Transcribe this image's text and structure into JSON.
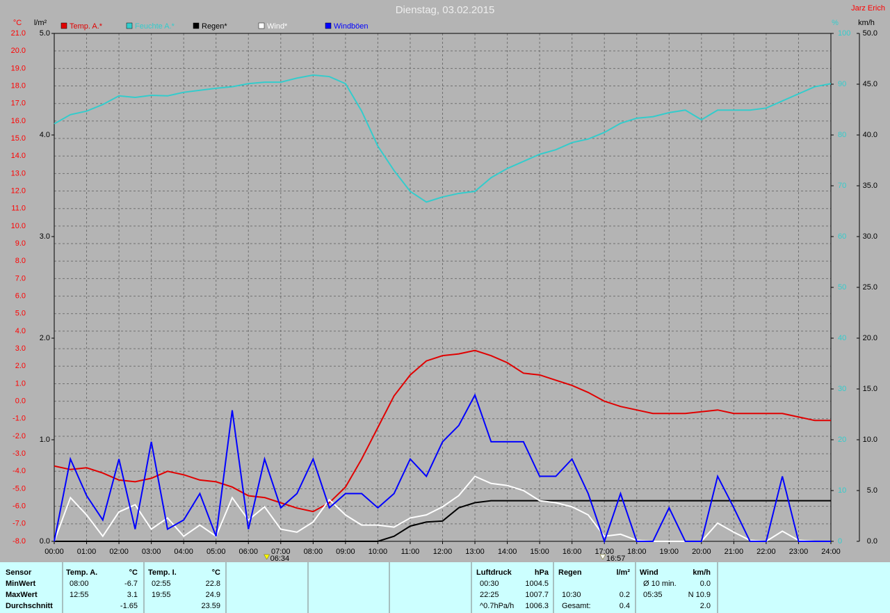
{
  "chart_data": {
    "type": "line",
    "title": "Dienstag, 03.02.2015",
    "author": "Jarz Erich",
    "grid": true,
    "legend": "top-left",
    "x": [
      0,
      0.5,
      1,
      1.5,
      2,
      2.5,
      3,
      3.5,
      4,
      4.5,
      5,
      5.5,
      6,
      6.5,
      7,
      7.5,
      8,
      8.5,
      9,
      9.5,
      10,
      10.5,
      11,
      11.5,
      12,
      12.5,
      13,
      13.5,
      14,
      14.5,
      15,
      15.5,
      16,
      16.5,
      17,
      17.5,
      18,
      18.5,
      19,
      19.5,
      20,
      20.5,
      21,
      21.5,
      22,
      22.5,
      23,
      23.5,
      24
    ],
    "xlim": [
      0,
      24
    ],
    "xticks": [
      {
        "value": 0,
        "label": "00:00"
      },
      {
        "value": 1,
        "label": "01:00"
      },
      {
        "value": 2,
        "label": "02:00"
      },
      {
        "value": 3,
        "label": "03:00"
      },
      {
        "value": 4,
        "label": "04:00"
      },
      {
        "value": 5,
        "label": "05:00"
      },
      {
        "value": 6,
        "label": "06:00"
      },
      {
        "value": 7,
        "label": "07:00"
      },
      {
        "value": 8,
        "label": "08:00"
      },
      {
        "value": 9,
        "label": "09:00"
      },
      {
        "value": 10,
        "label": "10:00"
      },
      {
        "value": 11,
        "label": "11:00"
      },
      {
        "value": 12,
        "label": "12:00"
      },
      {
        "value": 13,
        "label": "13:00"
      },
      {
        "value": 14,
        "label": "14:00"
      },
      {
        "value": 15,
        "label": "15:00"
      },
      {
        "value": 16,
        "label": "16:00"
      },
      {
        "value": 17,
        "label": "17:00"
      },
      {
        "value": 18,
        "label": "18:00"
      },
      {
        "value": 19,
        "label": "19:00"
      },
      {
        "value": 20,
        "label": "20:00"
      },
      {
        "value": 21,
        "label": "21:00"
      },
      {
        "value": 22,
        "label": "22:00"
      },
      {
        "value": 23,
        "label": "23:00"
      },
      {
        "value": 24,
        "label": "24:00"
      }
    ],
    "y_label": "°C",
    "ylim": [
      -8,
      21
    ],
    "yticks": [
      {
        "value": -8,
        "label": "-8.0"
      },
      {
        "value": -7,
        "label": "-7.0"
      },
      {
        "value": -6,
        "label": "-6.0"
      },
      {
        "value": -5,
        "label": "-5.0"
      },
      {
        "value": -4,
        "label": "-4.0"
      },
      {
        "value": -3,
        "label": "-3.0"
      },
      {
        "value": -2,
        "label": "-2.0"
      },
      {
        "value": -1,
        "label": "-1.0"
      },
      {
        "value": 0,
        "label": "0.0"
      },
      {
        "value": 1,
        "label": "1.0"
      },
      {
        "value": 2,
        "label": "2.0"
      },
      {
        "value": 3,
        "label": "3.0"
      },
      {
        "value": 4,
        "label": "4.0"
      },
      {
        "value": 5,
        "label": "5.0"
      },
      {
        "value": 6,
        "label": "6.0"
      },
      {
        "value": 7,
        "label": "7.0"
      },
      {
        "value": 8,
        "label": "8.0"
      },
      {
        "value": 9,
        "label": "9.0"
      },
      {
        "value": 10,
        "label": "10.0"
      },
      {
        "value": 11,
        "label": "11.0"
      },
      {
        "value": 12,
        "label": "12.0"
      },
      {
        "value": 13,
        "label": "13.0"
      },
      {
        "value": 14,
        "label": "14.0"
      },
      {
        "value": 15,
        "label": "15.0"
      },
      {
        "value": 16,
        "label": "16.0"
      },
      {
        "value": 17,
        "label": "17.0"
      },
      {
        "value": 18,
        "label": "18.0"
      },
      {
        "value": 19,
        "label": "19.0"
      },
      {
        "value": 20,
        "label": "20.0"
      },
      {
        "value": 21,
        "label": "21.0"
      }
    ],
    "y2_label": "%",
    "y2lim": [
      0,
      100
    ],
    "y2ticks": [
      0,
      10,
      20,
      30,
      40,
      50,
      60,
      70,
      80,
      90,
      100
    ],
    "y3_label": "l/m²",
    "y3lim": [
      0,
      5
    ],
    "y3ticks": [
      {
        "value": 0,
        "label": "0.0"
      },
      {
        "value": 1,
        "label": "1.0"
      },
      {
        "value": 2,
        "label": "2.0"
      },
      {
        "value": 3,
        "label": "3.0"
      },
      {
        "value": 4,
        "label": "4.0"
      },
      {
        "value": 5,
        "label": "5.0"
      }
    ],
    "y4_label": "km/h",
    "y4lim": [
      0,
      50
    ],
    "y4ticks": [
      {
        "value": 0,
        "label": "0.0"
      },
      {
        "value": 5,
        "label": "5.0"
      },
      {
        "value": 10,
        "label": "10.0"
      },
      {
        "value": 15,
        "label": "15.0"
      },
      {
        "value": 20,
        "label": "20.0"
      },
      {
        "value": 25,
        "label": "25.0"
      },
      {
        "value": 30,
        "label": "30.0"
      },
      {
        "value": 35,
        "label": "35.0"
      },
      {
        "value": 40,
        "label": "40.0"
      },
      {
        "value": 45,
        "label": "45.0"
      },
      {
        "value": 50,
        "label": "50.0"
      }
    ],
    "series": [
      {
        "name": "Temp. A.*",
        "color": "#e00000",
        "axis": "y",
        "values": [
          -3.7,
          -3.9,
          -3.8,
          -4.1,
          -4.5,
          -4.6,
          -4.4,
          -4.0,
          -4.2,
          -4.5,
          -4.6,
          -4.9,
          -5.4,
          -5.5,
          -5.8,
          -6.1,
          -6.3,
          -5.8,
          -4.9,
          -3.3,
          -1.5,
          0.3,
          1.5,
          2.3,
          2.6,
          2.7,
          2.9,
          2.6,
          2.2,
          1.6,
          1.5,
          1.2,
          0.9,
          0.5,
          0,
          -0.3,
          -0.5,
          -0.7,
          -0.7,
          -0.7,
          -0.6,
          -0.5,
          -0.7,
          -0.7,
          -0.7,
          -0.7,
          -0.9,
          -1.1,
          -1.1
        ]
      },
      {
        "name": "Feuchte A.*",
        "color": "#33cccc",
        "axis": "y2",
        "values": [
          82.2,
          84,
          84.7,
          86,
          87.7,
          87.4,
          87.8,
          87.7,
          88.4,
          88.8,
          89.2,
          89.5,
          90.1,
          90.4,
          90.4,
          91.2,
          91.8,
          91.5,
          90.1,
          84.7,
          77.8,
          73,
          68.9,
          66.8,
          67.8,
          68.5,
          68.9,
          71.6,
          73.4,
          74.8,
          76.2,
          77.1,
          78.5,
          79.2,
          80.5,
          82.3,
          83.3,
          83.6,
          84.4,
          84.9,
          83,
          84.9,
          84.9,
          84.9,
          85.3,
          86.7,
          88.1,
          89.5,
          90.1
        ]
      },
      {
        "name": "Regen*",
        "color": "#000000",
        "axis": "y3",
        "values": [
          0,
          0,
          0,
          0,
          0,
          0,
          0,
          0,
          0,
          0,
          0,
          0,
          0,
          0,
          0,
          0,
          0,
          0,
          0,
          0,
          0,
          0.05,
          0.15,
          0.19,
          0.2,
          0.33,
          0.38,
          0.4,
          0.4,
          0.4,
          0.4,
          0.4,
          0.4,
          0.4,
          0.4,
          0.4,
          0.4,
          0.4,
          0.4,
          0.4,
          0.4,
          0.4,
          0.4,
          0.4,
          0.4,
          0.4,
          0.4,
          0.4,
          0.4
        ]
      },
      {
        "name": "Wind*",
        "color": "#ffffff",
        "axis": "y4",
        "values": [
          0,
          4.3,
          2.6,
          0.5,
          2.9,
          3.6,
          1.2,
          2.3,
          0.5,
          1.6,
          0.5,
          4.3,
          2.1,
          3.4,
          1.2,
          0.9,
          1.9,
          4.1,
          2.6,
          1.6,
          1.6,
          1.4,
          2.3,
          2.6,
          3.4,
          4.5,
          6.4,
          5.7,
          5.5,
          5,
          4,
          3.8,
          3.4,
          2.6,
          0.5,
          0.7,
          0.1,
          0,
          0,
          0,
          0,
          1.8,
          0.9,
          0.1,
          0,
          1,
          0.1,
          0,
          0
        ]
      },
      {
        "name": "Windböen",
        "color": "#0000ff",
        "axis": "y4",
        "values": [
          0,
          8.1,
          4.5,
          2.1,
          8.1,
          1.2,
          9.8,
          1.2,
          2.1,
          4.7,
          0.5,
          12.9,
          1.2,
          8.1,
          3.3,
          4.7,
          8.1,
          3.3,
          4.7,
          4.7,
          3.3,
          4.7,
          8.1,
          6.4,
          9.8,
          11.4,
          14.4,
          9.8,
          9.8,
          9.8,
          6.4,
          6.4,
          8.1,
          4.7,
          0,
          4.7,
          0,
          0,
          3.3,
          0,
          0,
          6.4,
          3.3,
          0,
          0,
          6.4,
          0,
          0,
          0
        ]
      }
    ],
    "markers": [
      {
        "value": 6.5667,
        "label": "06:34",
        "color": "#ffff00"
      },
      {
        "value": 16.95,
        "label": "16:57",
        "color": "#ffffff"
      }
    ]
  },
  "stats_table": {
    "row_labels": [
      "Sensor",
      "MinWert",
      "MaxWert",
      "Durchschnitt"
    ],
    "columns": [
      {
        "name": "Temp. A.",
        "unit": "°C",
        "rows": [
          [
            "08:00",
            "-6.7"
          ],
          [
            "12:55",
            "3.1"
          ],
          [
            null,
            "-1.65"
          ]
        ]
      },
      {
        "name": "Temp. I.",
        "unit": "°C",
        "rows": [
          [
            "02:55",
            "22.8"
          ],
          [
            "19:55",
            "24.9"
          ],
          [
            null,
            "23.59"
          ]
        ]
      },
      {
        "name": "Luftdruck",
        "unit": "hPa",
        "rows": [
          [
            "00:30",
            "1004.5"
          ],
          [
            "22:25",
            "1007.7"
          ],
          [
            "^0.7hPa/h",
            "1006.3"
          ]
        ]
      },
      {
        "name": "Regen",
        "unit": "l/m²",
        "rows": [
          [
            null,
            null
          ],
          [
            "10:30",
            "0.2"
          ],
          [
            "Gesamt:",
            "0.4"
          ]
        ]
      },
      {
        "name": "Wind",
        "unit": "km/h",
        "rows": [
          [
            "Ø 10 min.",
            "0.0"
          ],
          [
            "05:35",
            "N 10.9"
          ],
          [
            null,
            "2.0"
          ]
        ]
      }
    ]
  }
}
